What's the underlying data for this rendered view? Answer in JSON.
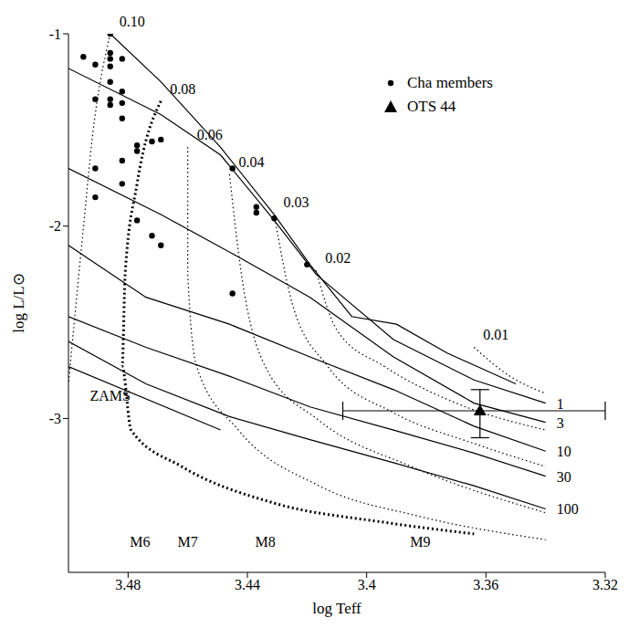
{
  "chart_data": {
    "type": "scatter",
    "xlabel": "log Teff",
    "ylabel": "log L/L⊙",
    "xlim": [
      3.5,
      3.32
    ],
    "ylim": [
      -3.8,
      -1
    ],
    "xticks": [
      3.48,
      3.44,
      3.4,
      3.36,
      3.32
    ],
    "yticks": [
      -3,
      -2,
      -1
    ],
    "legend": "upper right",
    "series": [
      {
        "name": "Cha members",
        "type": "scatter",
        "marker": "circle",
        "color": "#000000",
        "x": [
          3.495,
          3.491,
          3.486,
          3.486,
          3.486,
          3.486,
          3.482,
          3.491,
          3.486,
          3.486,
          3.486,
          3.482,
          3.482,
          3.482,
          3.491,
          3.482,
          3.477,
          3.477,
          3.472,
          3.469,
          3.477,
          3.472,
          3.469,
          3.445,
          3.482,
          3.491,
          3.437,
          3.437,
          3.431,
          3.42,
          3.445
        ],
        "y": [
          -1.12,
          -1.16,
          -1.0,
          -1.1,
          -1.13,
          -1.17,
          -1.13,
          -1.34,
          -1.25,
          -1.34,
          -1.37,
          -1.3,
          -1.36,
          -1.44,
          -1.7,
          -1.66,
          -1.58,
          -1.61,
          -1.56,
          -1.55,
          -1.97,
          -2.05,
          -2.1,
          -1.7,
          -1.78,
          -1.85,
          -1.9,
          -1.93,
          -1.96,
          -2.2,
          -2.35
        ]
      },
      {
        "name": "OTS 44",
        "type": "scatter",
        "marker": "triangle",
        "color": "#000000",
        "x": [
          3.362
        ],
        "y": [
          -2.96
        ],
        "x_error": [
          [
            0.042,
            0.046
          ]
        ],
        "y_error": [
          [
            0.14,
            0.11
          ]
        ]
      }
    ],
    "tracks": [
      {
        "label": "0.10",
        "line_style": "dotted",
        "color": "#000000",
        "x": [
          3.486,
          3.492,
          3.495,
          3.498,
          3.5
        ],
        "y": [
          -1.0,
          -1.54,
          -2.01,
          -2.49,
          -2.82
        ]
      },
      {
        "label": "0.08",
        "line_style": "thick_dotted",
        "color": "#000000",
        "x": [
          3.469,
          3.477,
          3.481,
          3.482,
          3.479,
          3.462,
          3.431,
          3.394,
          3.364
        ],
        "y": [
          -1.35,
          -1.78,
          -2.25,
          -2.73,
          -3.06,
          -3.25,
          -3.44,
          -3.54,
          -3.6
        ]
      },
      {
        "label": "0.06",
        "line_style": "dotted",
        "color": "#000000",
        "x": [
          3.46,
          3.46,
          3.457,
          3.443,
          3.416,
          3.382,
          3.34
        ],
        "y": [
          -1.59,
          -2.25,
          -2.73,
          -3.06,
          -3.35,
          -3.51,
          -3.63
        ]
      },
      {
        "label": "0.04",
        "line_style": "dotted",
        "color": "#000000",
        "x": [
          3.446,
          3.442,
          3.434,
          3.416,
          3.385,
          3.34
        ],
        "y": [
          -1.73,
          -2.25,
          -2.73,
          -3.01,
          -3.25,
          -3.49
        ]
      },
      {
        "label": "0.03",
        "line_style": "dotted",
        "color": "#000000",
        "x": [
          3.431,
          3.425,
          3.413,
          3.391,
          3.364,
          3.34
        ],
        "y": [
          -1.94,
          -2.4,
          -2.73,
          -2.97,
          -3.13,
          -3.25
        ]
      },
      {
        "label": "0.02",
        "line_style": "dotted",
        "color": "#000000",
        "x": [
          3.417,
          3.41,
          3.394,
          3.37,
          3.34
        ],
        "y": [
          -2.23,
          -2.54,
          -2.73,
          -2.92,
          -3.06
        ]
      },
      {
        "label": "0.01",
        "line_style": "dotted",
        "color": "#000000",
        "x": [
          3.364,
          3.352,
          3.34
        ],
        "y": [
          -2.63,
          -2.78,
          -2.87
        ]
      }
    ],
    "isochrones": [
      {
        "line_style": "solid",
        "color": "#000000",
        "x": [
          3.486,
          3.469,
          3.449,
          3.431,
          3.419,
          3.405,
          3.39,
          3.373,
          3.35
        ],
        "y": [
          -1.0,
          -1.25,
          -1.59,
          -1.94,
          -2.2,
          -2.47,
          -2.51,
          -2.66,
          -2.82
        ]
      },
      {
        "label": "1",
        "line_style": "solid",
        "color": "#000000",
        "x": [
          3.5,
          3.469,
          3.449,
          3.431,
          3.417,
          3.391,
          3.364,
          3.34
        ],
        "y": [
          -1.18,
          -1.42,
          -1.63,
          -1.97,
          -2.25,
          -2.59,
          -2.8,
          -2.92
        ]
      },
      {
        "label": "3",
        "line_style": "solid",
        "color": "#000000",
        "x": [
          3.5,
          3.469,
          3.443,
          3.419,
          3.391,
          3.364,
          3.34
        ],
        "y": [
          -1.7,
          -1.94,
          -2.16,
          -2.37,
          -2.68,
          -2.92,
          -3.02
        ]
      },
      {
        "label": "10",
        "line_style": "solid",
        "color": "#000000",
        "x": [
          3.5,
          3.474,
          3.446,
          3.419,
          3.391,
          3.364,
          3.34
        ],
        "y": [
          -2.1,
          -2.37,
          -2.51,
          -2.68,
          -2.85,
          -3.04,
          -3.17
        ]
      },
      {
        "label": "30",
        "line_style": "solid",
        "color": "#000000",
        "x": [
          3.5,
          3.474,
          3.446,
          3.419,
          3.391,
          3.364,
          3.34
        ],
        "y": [
          -2.47,
          -2.63,
          -2.78,
          -2.94,
          -3.06,
          -3.18,
          -3.3
        ]
      },
      {
        "label": "100",
        "line_style": "solid",
        "color": "#000000",
        "x": [
          3.5,
          3.474,
          3.446,
          3.419,
          3.391,
          3.364,
          3.34
        ],
        "y": [
          -2.6,
          -2.82,
          -2.99,
          -3.11,
          -3.23,
          -3.35,
          -3.47
        ]
      }
    ],
    "zams": {
      "line_style": "solid",
      "color": "#000000",
      "x": [
        3.5,
        3.449
      ],
      "y": [
        -2.73,
        -3.06
      ]
    },
    "annotations": [
      {
        "text": "ZAMS",
        "x": 3.486,
        "y": -2.88
      },
      {
        "text": "M6",
        "x": 3.476,
        "y": -3.64
      },
      {
        "text": "M7",
        "x": 3.46,
        "y": -3.64
      },
      {
        "text": "M8",
        "x": 3.434,
        "y": -3.64
      },
      {
        "text": "M9",
        "x": 3.382,
        "y": -3.64
      }
    ]
  }
}
